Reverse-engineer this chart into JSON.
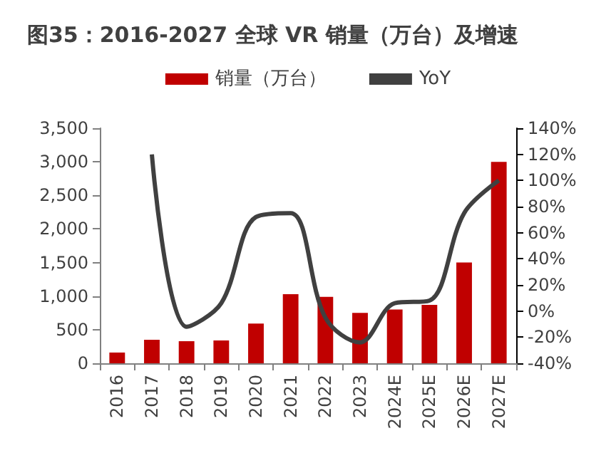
{
  "chart_data": {
    "type": "bar",
    "title": "图35：2016-2027 全球 VR 销量（万台）及增速",
    "categories": [
      "2016",
      "2017",
      "2018",
      "2019",
      "2020",
      "2021",
      "2022",
      "2023",
      "2024E",
      "2025E",
      "2026E",
      "2027E"
    ],
    "series": [
      {
        "name": "销量（万台）",
        "color": "#c00000",
        "values": [
          160,
          350,
          330,
          340,
          590,
          1030,
          990,
          750,
          800,
          870,
          1500,
          3000
        ]
      },
      {
        "name": "YoY",
        "type": "line",
        "axis": "y2",
        "color": "#404040",
        "values": [
          null,
          120,
          -12,
          6,
          72,
          75,
          -5,
          -24,
          6,
          8,
          75,
          100
        ]
      }
    ],
    "ylim": [
      0,
      3500
    ],
    "yticks": [
      0,
      500,
      {
        "value": 1000,
        "label": "1,000"
      },
      {
        "value": 1500,
        "label": "1,500"
      },
      {
        "value": 2000,
        "label": "2,000"
      },
      {
        "value": 2500,
        "label": "2,500"
      },
      {
        "value": 3000,
        "label": "3,000"
      },
      {
        "value": 3500,
        "label": "3,500"
      }
    ],
    "y2lim": [
      -40,
      140
    ],
    "y2ticks": [
      {
        "value": -40,
        "label": "-40%"
      },
      {
        "value": -20,
        "label": "-20%"
      },
      {
        "value": 0,
        "label": "0%"
      },
      {
        "value": 20,
        "label": "20%"
      },
      {
        "value": 40,
        "label": "40%"
      },
      {
        "value": 60,
        "label": "60%"
      },
      {
        "value": 80,
        "label": "80%"
      },
      {
        "value": 100,
        "label": "100%"
      },
      {
        "value": 120,
        "label": "120%"
      },
      {
        "value": 140,
        "label": "140%"
      }
    ],
    "grid": false,
    "legend": "top",
    "marker": "none",
    "line_style": "solid"
  }
}
